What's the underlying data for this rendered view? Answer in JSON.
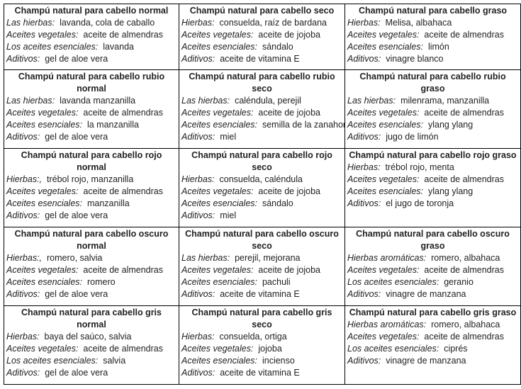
{
  "rows": [
    [
      {
        "title": "Champú natural para cabello normal",
        "lines": [
          [
            "Las hierbas:",
            "lavanda, cola de caballo"
          ],
          [
            "Aceites vegetales:",
            "aceite de almendras"
          ],
          [
            "Los aceites esenciales:",
            "lavanda"
          ],
          [
            "Aditivos:",
            "gel de aloe vera"
          ]
        ]
      },
      {
        "title": "Champú natural para cabello seco",
        "lines": [
          [
            "Hierbas:",
            "consuelda, raíz de bardana"
          ],
          [
            "Aceites vegetales:",
            "aceite de jojoba"
          ],
          [
            "Aceites esenciales:",
            "sándalo"
          ],
          [
            "Aditivos:",
            "aceite de vitamina E"
          ]
        ]
      },
      {
        "title": "Champú natural para cabello graso",
        "lines": [
          [
            "Hierbas:",
            "Melisa, albahaca"
          ],
          [
            "Aceites vegetales:",
            "aceite de almendras"
          ],
          [
            "Aceites esenciales:",
            "limón"
          ],
          [
            "Aditivos:",
            "vinagre blanco"
          ]
        ]
      }
    ],
    [
      {
        "title": "Champú natural para cabello rubio normal",
        "lines": [
          [
            "Las hierbas:",
            "lavanda manzanilla"
          ],
          [
            "Aceites vegetales:",
            "aceite de almendras"
          ],
          [
            "Aceites esenciales:",
            "la manzanilla"
          ],
          [
            "Aditivos:",
            "gel de aloe vera"
          ]
        ]
      },
      {
        "title": "Champú natural para cabello rubio seco",
        "lines": [
          [
            "Las hierbas:",
            "caléndula, perejil"
          ],
          [
            "Aceites vegetales:",
            "aceite de jojoba"
          ],
          [
            "Aceites esenciales:",
            "semilla de la zanahoria"
          ],
          [
            "Aditivos:",
            "miel"
          ]
        ]
      },
      {
        "title": "Champú natural para cabello rubio graso",
        "lines": [
          [
            "Las hierbas:",
            "milenrama, manzanilla"
          ],
          [
            "Aceites vegetales:",
            "aceite de almendras"
          ],
          [
            "Aceites esenciales:",
            "ylang ylang"
          ],
          [
            "Aditivos:",
            "jugo de limón"
          ]
        ]
      }
    ],
    [
      {
        "title": "Champú natural para cabello rojo normal",
        "lines": [
          [
            "Hierbas:,",
            "trébol rojo, manzanilla"
          ],
          [
            "Aceites vegetales:",
            "aceite de almendras"
          ],
          [
            "Aceites esenciales:",
            "manzanilla"
          ],
          [
            "Aditivos:",
            "gel de aloe vera"
          ]
        ]
      },
      {
        "title": "Champú natural para cabello rojo seco",
        "lines": [
          [
            "Hierbas:",
            "consuelda, caléndula"
          ],
          [
            "Aceites vegetales:",
            "aceite de jojoba"
          ],
          [
            "Aceites esenciales:",
            "sándalo"
          ],
          [
            "Aditivos:",
            "miel"
          ]
        ]
      },
      {
        "title": "Champú natural para cabello rojo graso",
        "lines": [
          [
            "Hierbas:",
            "trébol rojo, menta"
          ],
          [
            "Aceites vegetales:",
            "aceite de almendras"
          ],
          [
            "Aceites esenciales:",
            "ylang ylang"
          ],
          [
            "Aditivos:",
            "el jugo de toronja"
          ]
        ]
      }
    ],
    [
      {
        "title": "Champú natural para cabello oscuro normal",
        "lines": [
          [
            "Hierbas:,",
            "romero, salvia"
          ],
          [
            "Aceites vegetales:",
            "aceite de almendras"
          ],
          [
            "Aceites esenciales:",
            "romero"
          ],
          [
            "Aditivos:",
            "gel de aloe vera"
          ]
        ]
      },
      {
        "title": "Champú natural para cabello oscuro seco",
        "lines": [
          [
            "Las hierbas:",
            "perejil, mejorana"
          ],
          [
            "Aceites vegetales:",
            "aceite de jojoba"
          ],
          [
            "Aceites esenciales:",
            "pachuli"
          ],
          [
            "Aditivos:",
            "aceite de vitamina E"
          ]
        ]
      },
      {
        "title": "Champú natural para cabello oscuro graso",
        "lines": [
          [
            "Hierbas aromáticas:",
            "romero, albahaca"
          ],
          [
            "Aceites vegetales:",
            "aceite de almendras"
          ],
          [
            "Los aceites esenciales:",
            "geranio"
          ],
          [
            "Aditivos:",
            "vinagre de manzana"
          ]
        ]
      }
    ],
    [
      {
        "title": "Champú natural para cabello gris normal",
        "lines": [
          [
            "Hierbas:",
            "baya del saúco, salvia"
          ],
          [
            "Aceites vegetales:",
            "aceite de almendras"
          ],
          [
            "Los aceites esenciales:",
            "salvia"
          ],
          [
            "Aditivos:",
            "gel de aloe vera"
          ]
        ]
      },
      {
        "title": "Champú natural para cabello gris seco",
        "lines": [
          [
            "Hierbas:",
            "consuelda, ortiga"
          ],
          [
            "Aceites vegetales:",
            "jojoba"
          ],
          [
            "Aceites esenciales:",
            "incienso"
          ],
          [
            "Aditivos:",
            "aceite de vitamina E"
          ]
        ]
      },
      {
        "title": "Champú natural para cabello gris graso",
        "lines": [
          [
            "Hierbas aromáticas:",
            "romero, albahaca"
          ],
          [
            "Aceites vegetales:",
            "aceite de almendras"
          ],
          [
            "Los aceites esenciales:",
            "ciprés"
          ],
          [
            "Aditivos:",
            "vinagre de manzana"
          ]
        ]
      }
    ]
  ]
}
